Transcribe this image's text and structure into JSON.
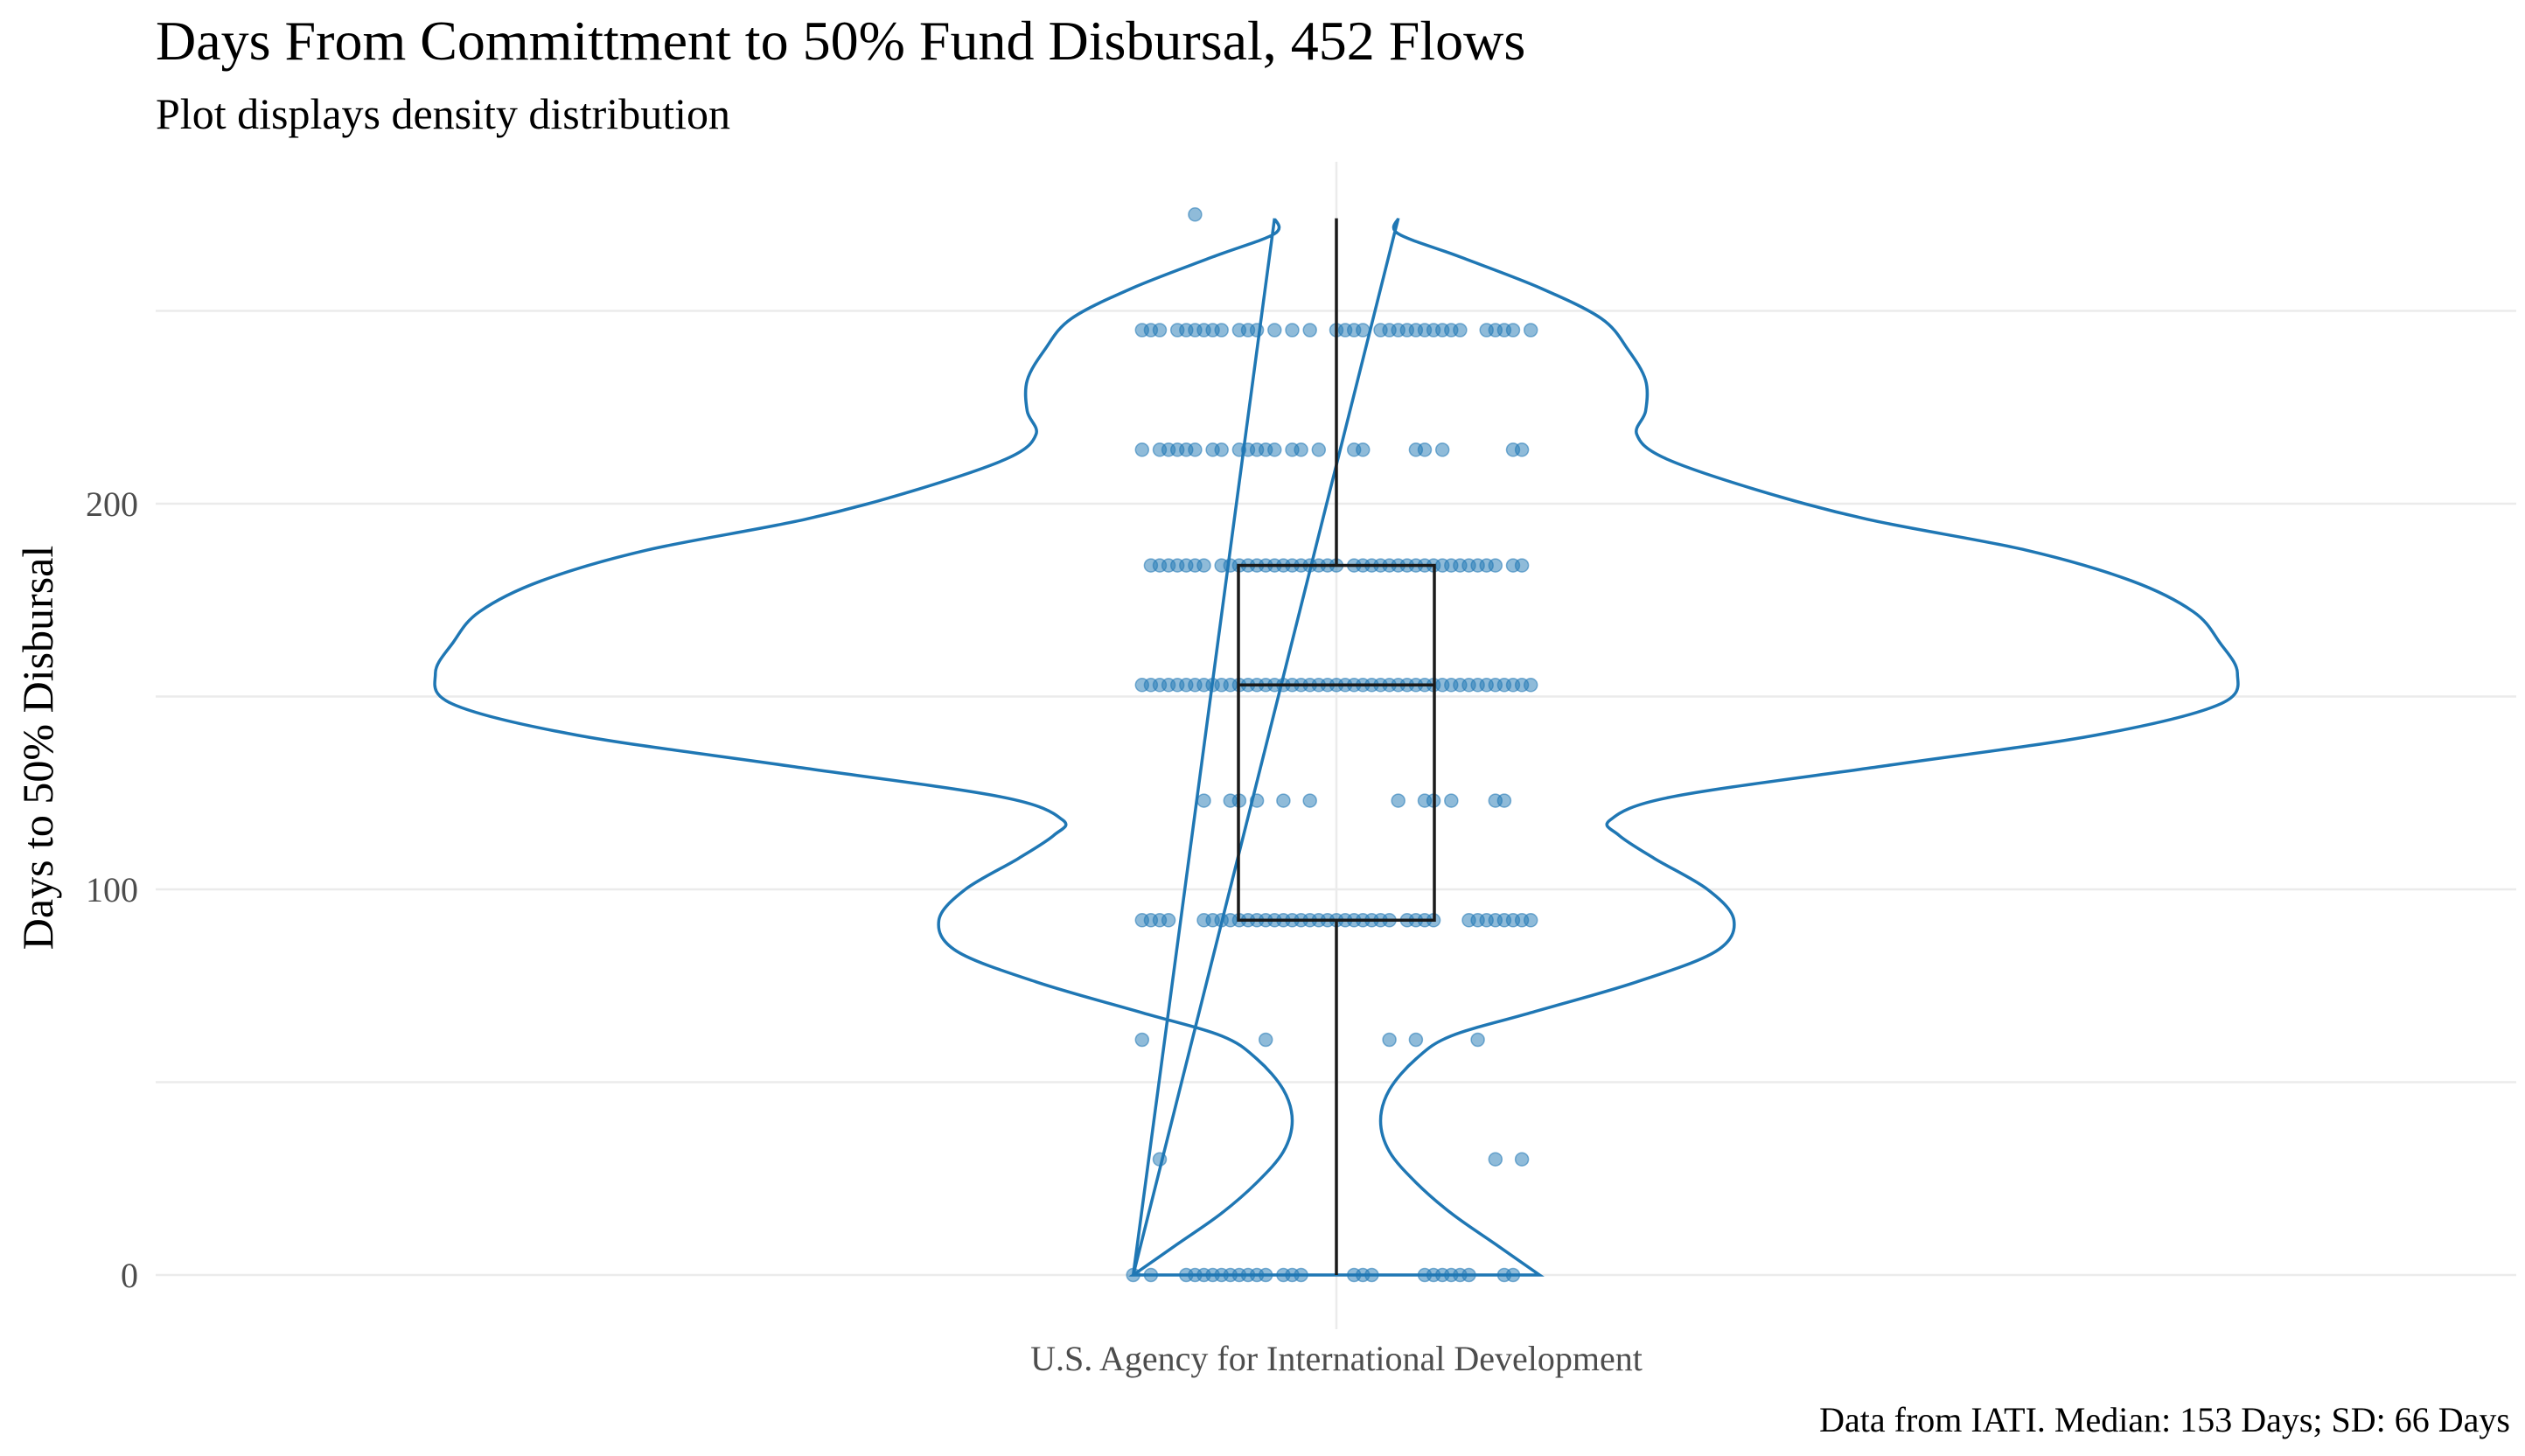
{
  "chart_data": {
    "type": "violin",
    "title": "Days From Committment to 50% Fund Disbursal, 452 Flows",
    "subtitle": "Plot displays density distribution",
    "xlabel": "",
    "ylabel": "Days to 50% Disbursal",
    "caption": "Data from IATI.  Median: 153 Days; SD: 66 Days",
    "categories": [
      "U.S. Agency for International Development"
    ],
    "ylim": [
      -12,
      288
    ],
    "yticks": [
      0,
      100,
      200
    ],
    "ytick_labels": [
      "0",
      "100",
      "200"
    ],
    "grid": true,
    "legend": "none",
    "colors": {
      "violin": "#1f77b4",
      "points": "#1f77b4",
      "box": "#1a1a1a",
      "grid": "#ebebeb"
    },
    "boxplot": {
      "min": 0,
      "q1": 92,
      "median": 153,
      "q3": 184,
      "max": 274
    },
    "density_profile": [
      [
        0,
        0.23
      ],
      [
        8,
        0.18
      ],
      [
        16,
        0.13
      ],
      [
        24,
        0.09
      ],
      [
        32,
        0.06
      ],
      [
        40,
        0.05
      ],
      [
        48,
        0.06
      ],
      [
        56,
        0.09
      ],
      [
        62,
        0.13
      ],
      [
        68,
        0.22
      ],
      [
        76,
        0.34
      ],
      [
        84,
        0.43
      ],
      [
        92,
        0.45
      ],
      [
        100,
        0.42
      ],
      [
        108,
        0.36
      ],
      [
        114,
        0.32
      ],
      [
        118,
        0.31
      ],
      [
        124,
        0.38
      ],
      [
        132,
        0.62
      ],
      [
        140,
        0.86
      ],
      [
        148,
        1.0
      ],
      [
        156,
        1.02
      ],
      [
        164,
        1.0
      ],
      [
        172,
        0.97
      ],
      [
        180,
        0.9
      ],
      [
        188,
        0.78
      ],
      [
        196,
        0.6
      ],
      [
        204,
        0.47
      ],
      [
        212,
        0.37
      ],
      [
        218,
        0.34
      ],
      [
        224,
        0.35
      ],
      [
        232,
        0.35
      ],
      [
        240,
        0.33
      ],
      [
        248,
        0.3
      ],
      [
        256,
        0.23
      ],
      [
        264,
        0.14
      ],
      [
        270,
        0.07
      ],
      [
        274,
        0.07
      ]
    ],
    "points": [
      {
        "day": 0,
        "offsets": [
          -0.23,
          -0.21,
          -0.17,
          -0.16,
          -0.15,
          -0.14,
          -0.13,
          -0.12,
          -0.11,
          -0.1,
          -0.09,
          -0.08,
          -0.06,
          -0.05,
          -0.04,
          0.02,
          0.03,
          0.04,
          0.1,
          0.11,
          0.12,
          0.13,
          0.14,
          0.15,
          0.19,
          0.2
        ]
      },
      {
        "day": 30,
        "offsets": [
          -0.2,
          0.18,
          0.21
        ]
      },
      {
        "day": 61,
        "offsets": [
          -0.22,
          -0.08,
          0.06,
          0.09,
          0.16
        ]
      },
      {
        "day": 92,
        "offsets": [
          -0.22,
          -0.21,
          -0.2,
          -0.19,
          -0.15,
          -0.14,
          -0.13,
          -0.12,
          -0.11,
          -0.1,
          -0.09,
          -0.08,
          -0.07,
          -0.06,
          -0.05,
          -0.04,
          -0.03,
          -0.02,
          -0.01,
          0.0,
          0.01,
          0.02,
          0.03,
          0.04,
          0.05,
          0.06,
          0.08,
          0.09,
          0.1,
          0.11,
          0.15,
          0.16,
          0.17,
          0.18,
          0.19,
          0.2,
          0.21,
          0.22
        ]
      },
      {
        "day": 123,
        "offsets": [
          -0.15,
          -0.12,
          -0.11,
          -0.09,
          -0.06,
          -0.03,
          0.07,
          0.1,
          0.11,
          0.13,
          0.18,
          0.19
        ]
      },
      {
        "day": 153,
        "offsets": [
          -0.22,
          -0.21,
          -0.2,
          -0.19,
          -0.18,
          -0.17,
          -0.16,
          -0.15,
          -0.14,
          -0.13,
          -0.12,
          -0.11,
          -0.1,
          -0.09,
          -0.08,
          -0.07,
          -0.06,
          -0.05,
          -0.04,
          -0.03,
          -0.02,
          -0.01,
          0.0,
          0.01,
          0.02,
          0.03,
          0.04,
          0.05,
          0.06,
          0.07,
          0.08,
          0.09,
          0.1,
          0.11,
          0.12,
          0.13,
          0.14,
          0.15,
          0.16,
          0.17,
          0.18,
          0.19,
          0.2,
          0.21,
          0.22
        ]
      },
      {
        "day": 184,
        "offsets": [
          -0.21,
          -0.2,
          -0.19,
          -0.18,
          -0.17,
          -0.16,
          -0.15,
          -0.13,
          -0.12,
          -0.11,
          -0.1,
          -0.09,
          -0.08,
          -0.07,
          -0.06,
          -0.05,
          -0.04,
          -0.03,
          -0.02,
          -0.01,
          0.0,
          0.02,
          0.03,
          0.04,
          0.05,
          0.06,
          0.07,
          0.08,
          0.09,
          0.1,
          0.11,
          0.12,
          0.13,
          0.14,
          0.15,
          0.16,
          0.17,
          0.18,
          0.2,
          0.21
        ]
      },
      {
        "day": 214,
        "offsets": [
          -0.22,
          -0.2,
          -0.19,
          -0.18,
          -0.17,
          -0.16,
          -0.14,
          -0.13,
          -0.11,
          -0.1,
          -0.09,
          -0.08,
          -0.07,
          -0.05,
          -0.04,
          -0.02,
          0.02,
          0.03,
          0.09,
          0.1,
          0.12,
          0.2,
          0.21
        ]
      },
      {
        "day": 245,
        "offsets": [
          -0.22,
          -0.21,
          -0.2,
          -0.18,
          -0.17,
          -0.16,
          -0.15,
          -0.14,
          -0.13,
          -0.11,
          -0.1,
          -0.09,
          -0.07,
          -0.05,
          -0.03,
          0.0,
          0.01,
          0.02,
          0.03,
          0.05,
          0.06,
          0.07,
          0.08,
          0.09,
          0.1,
          0.11,
          0.12,
          0.13,
          0.14,
          0.17,
          0.18,
          0.19,
          0.2,
          0.22
        ]
      },
      {
        "day": 275,
        "offsets": [
          -0.16
        ]
      }
    ]
  }
}
